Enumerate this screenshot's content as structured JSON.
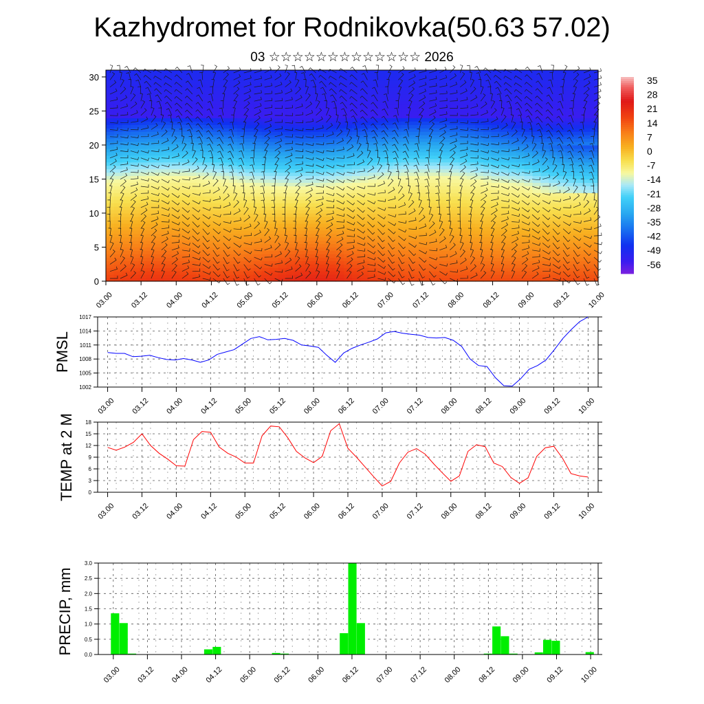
{
  "title": "Kazhydromet for Rodnikovka(50.63 57.02)",
  "subtitle": "03 ☆☆☆☆☆☆☆☆☆☆☆☆☆ 2026",
  "chart_data": [
    {
      "type": "heatmap",
      "name": "temperature-wind-height",
      "x_ticks": [
        "03.00",
        "03.12",
        "04.00",
        "04.12",
        "05.00",
        "05.12",
        "06.00",
        "06.12",
        "07.00",
        "07.12",
        "08.00",
        "08.12",
        "09.00",
        "09.12",
        "10.00"
      ],
      "y_ticks": [
        "0",
        "5",
        "10",
        "15",
        "20",
        "25",
        "30"
      ],
      "ylim": [
        0,
        31
      ],
      "colorbar_labels": [
        "35",
        "28",
        "21",
        "14",
        "7",
        "0",
        "-7",
        "-14",
        "-21",
        "-28",
        "-35",
        "-42",
        "-49",
        "-56"
      ],
      "colorbar_range": [
        -60,
        38
      ]
    },
    {
      "type": "line",
      "name": "pmsl",
      "ylabel": "PMSL",
      "x_ticks": [
        "03.00",
        "03.12",
        "04.00",
        "04.12",
        "05.00",
        "05.12",
        "06.00",
        "06.12",
        "07.00",
        "07.12",
        "08.00",
        "08.12",
        "09.00",
        "09.12",
        "10.00"
      ],
      "y_ticks": [
        "1002",
        "1005",
        "1008",
        "1011",
        "1014",
        "1017"
      ],
      "ylim": [
        1002,
        1017
      ],
      "color": "#0000ff",
      "values": [
        1009.4,
        1009.2,
        1009.2,
        1008.5,
        1008.6,
        1008.8,
        1008.3,
        1007.9,
        1007.8,
        1008.1,
        1007.8,
        1007.3,
        1007.8,
        1009.0,
        1009.5,
        1010.0,
        1011.2,
        1012.4,
        1012.8,
        1012.1,
        1012.2,
        1012.4,
        1012.0,
        1011.0,
        1010.8,
        1010.5,
        1008.8,
        1007.3,
        1009.3,
        1010.3,
        1011.0,
        1011.6,
        1012.3,
        1013.6,
        1013.9,
        1013.5,
        1013.3,
        1013.1,
        1012.6,
        1012.5,
        1012.6,
        1012.0,
        1010.7,
        1008.0,
        1006.6,
        1006.4,
        1004.0,
        1002.3,
        1002.2,
        1003.8,
        1005.8,
        1006.6,
        1007.8,
        1010.0,
        1012.4,
        1014.3,
        1016.0,
        1017.0
      ]
    },
    {
      "type": "line",
      "name": "temp2m",
      "ylabel": "TEMP at 2 M",
      "x_ticks": [
        "03.00",
        "03.12",
        "04.00",
        "04.12",
        "05.00",
        "05.12",
        "06.00",
        "06.12",
        "07.00",
        "07.12",
        "08.00",
        "08.12",
        "09.00",
        "09.12",
        "10.00"
      ],
      "y_ticks": [
        "0",
        "3",
        "6",
        "9",
        "12",
        "15",
        "18"
      ],
      "ylim": [
        0,
        18
      ],
      "color": "#ff0000",
      "values": [
        11.5,
        10.8,
        11.6,
        12.8,
        15.0,
        12.0,
        10.0,
        8.5,
        6.8,
        6.7,
        13.5,
        15.6,
        15.4,
        11.6,
        10.0,
        9.0,
        7.5,
        7.5,
        14.5,
        17.0,
        16.8,
        14.0,
        10.5,
        8.8,
        7.6,
        9.2,
        15.8,
        17.6,
        11.3,
        9.0,
        6.5,
        4.0,
        1.6,
        2.8,
        7.5,
        10.3,
        11.2,
        9.8,
        7.3,
        5.0,
        2.8,
        4.2,
        10.5,
        12.2,
        11.7,
        7.5,
        6.6,
        3.8,
        2.3,
        3.7,
        9.2,
        11.4,
        11.8,
        8.8,
        4.8,
        4.2,
        3.9
      ]
    },
    {
      "type": "bar",
      "name": "precip",
      "ylabel": "PRECIP, mm",
      "x_ticks": [
        "03.00",
        "03.12",
        "04.00",
        "04.12",
        "05.00",
        "05.12",
        "06.00",
        "06.12",
        "07.00",
        "07.12",
        "08.00",
        "08.12",
        "09.00",
        "09.12",
        "10.00"
      ],
      "y_ticks": [
        "0.0",
        "0.5",
        "1.0",
        "1.5",
        "2.0",
        "2.5",
        "3.0"
      ],
      "ylim": [
        0,
        3.0
      ],
      "color": "#00ee00",
      "values": [
        0,
        1.35,
        1.03,
        0.03,
        0,
        0,
        0,
        0,
        0,
        0,
        0,
        0,
        0.17,
        0.25,
        0,
        0,
        0,
        0,
        0,
        0,
        0.05,
        0.03,
        0,
        0,
        0,
        0,
        0,
        0,
        0.7,
        3.0,
        1.03,
        0,
        0,
        0,
        0,
        0,
        0,
        0,
        0,
        0,
        0,
        0,
        0,
        0,
        0,
        0.03,
        0.92,
        0.6,
        0.03,
        0,
        0,
        0.07,
        0.48,
        0.45,
        0,
        0,
        0,
        0.08
      ]
    }
  ]
}
